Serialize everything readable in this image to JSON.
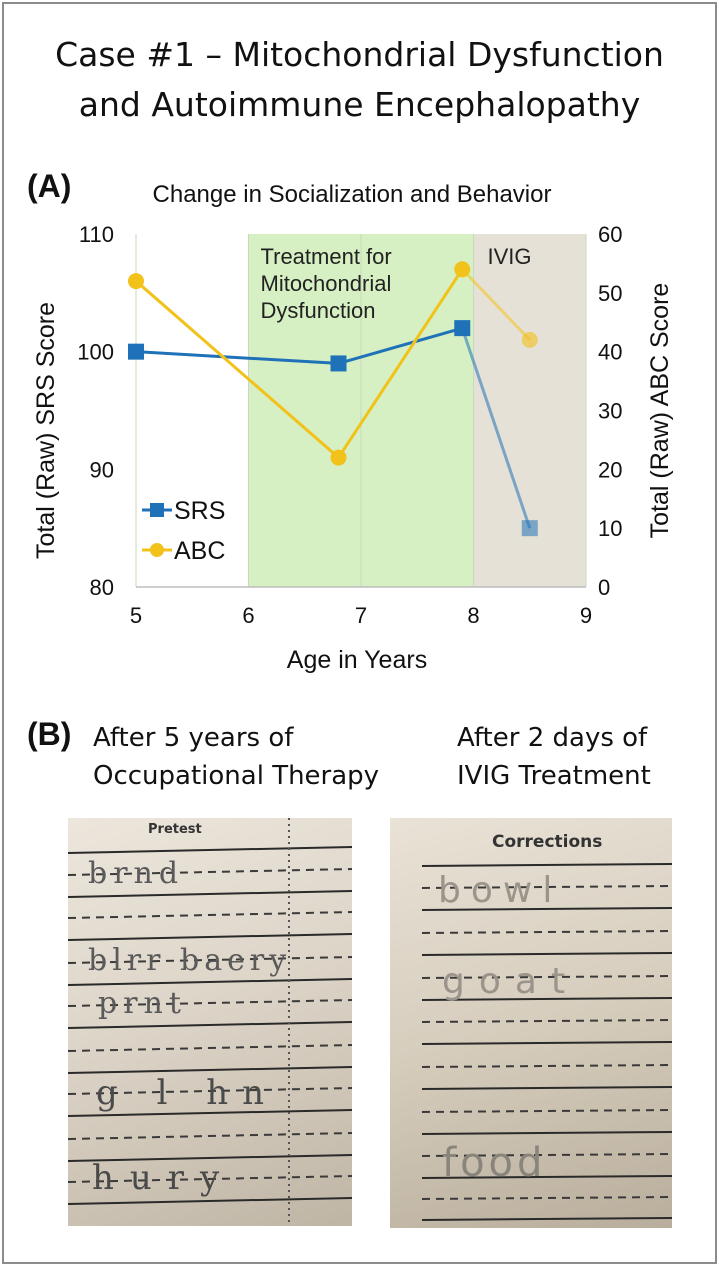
{
  "title_line1": "Case #1 – Mitochondrial Dysfunction",
  "title_line2": "and Autoimmune Encephalopathy",
  "panel_a_label": "(A)",
  "panel_b_label": "(B)",
  "chart_data": {
    "type": "line",
    "title": "Change in Socialization and Behavior",
    "xlabel": "Age in Years",
    "ylabel_left": "Total (Raw) SRS Score",
    "ylabel_right": "Total (Raw) ABC Score",
    "xlim": [
      5,
      9
    ],
    "ylim_left": [
      80,
      110
    ],
    "ylim_right": [
      0,
      60
    ],
    "x_ticks": [
      "5",
      "6",
      "7",
      "8",
      "9"
    ],
    "y_ticks_left": [
      "80",
      "90",
      "100",
      "110"
    ],
    "y_ticks_right": [
      "0",
      "10",
      "20",
      "30",
      "40",
      "50",
      "60"
    ],
    "grid": "vertical",
    "legend_position": "bottom-left",
    "regions": [
      {
        "label_lines": [
          "Treatment for",
          "Mitochondrial",
          "Dysfunction"
        ],
        "x_start": 6,
        "x_end": 8,
        "color": "#d6f0c3"
      },
      {
        "label_lines": [
          "IVIG"
        ],
        "x_start": 8,
        "x_end": 9,
        "color": "#e6e1d6"
      }
    ],
    "series": [
      {
        "name": "SRS",
        "axis": "left",
        "color": "#1f72b8",
        "marker": "square",
        "x": [
          5.0,
          6.8,
          7.9,
          8.5
        ],
        "values": [
          100,
          99,
          102,
          85
        ]
      },
      {
        "name": "ABC",
        "axis": "right",
        "color": "#f2c21b",
        "marker": "circle",
        "x": [
          5.0,
          6.8,
          7.9,
          8.5
        ],
        "values": [
          52,
          22,
          54,
          42
        ]
      }
    ]
  },
  "panel_b": {
    "left_caption": [
      "After 5 years of",
      "Occupational Therapy"
    ],
    "right_caption": [
      "After 2 days of",
      "IVIG Treatment"
    ],
    "left_sheet_header": "Pretest",
    "right_sheet_header": "Corrections",
    "left_handwriting": [
      "brnd",
      "blrr baery",
      "prnt",
      "g l hn",
      "hury"
    ],
    "right_handwriting": [
      "bowl",
      "goat",
      "food"
    ]
  }
}
